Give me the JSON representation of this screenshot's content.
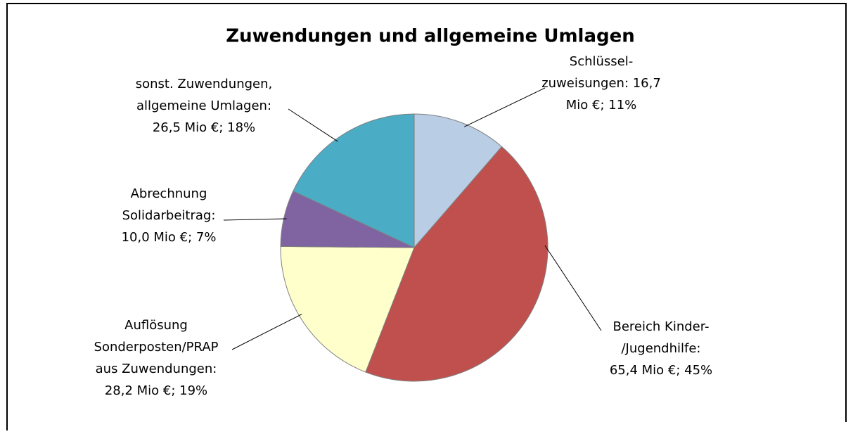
{
  "chart_data": {
    "type": "pie",
    "title": "Zuwendungen und allgemeine Umlagen",
    "values": [
      16.7,
      65.4,
      28.2,
      10.0,
      26.5
    ],
    "value_labels": [
      [
        "Schlüssel-",
        "zuweisungen: 16,7",
        "Mio €; 11%"
      ],
      [
        "Bereich Kinder-",
        "/Jugendhilfe:",
        "65,4 Mio €; 45%"
      ],
      [
        "Auflösung",
        "Sonderposten/PRAP",
        "aus Zuwendungen:",
        "28,2 Mio €; 19%"
      ],
      [
        "Abrechnung",
        "Solidarbeitrag:",
        "10,0 Mio €; 7%"
      ],
      [
        "sonst. Zuwendungen,",
        "allgemeine Umlagen:",
        "26,5 Mio €; 18%"
      ]
    ],
    "colors": [
      "#b9cde5",
      "#c0504d",
      "#ffffcc",
      "#8064a2",
      "#4bacc6"
    ]
  }
}
